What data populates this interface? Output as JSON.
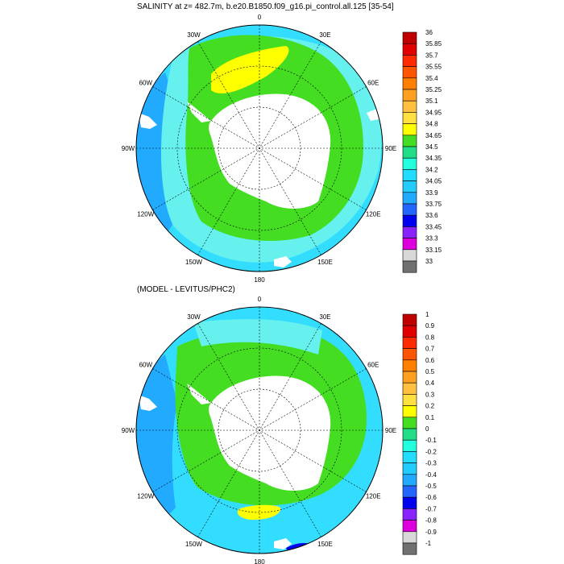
{
  "top_panel": {
    "title": "SALINITY at z= 482.7m, b.e20.B1850.f09_g16.pi_control.all.125 [35-54]",
    "colorbar": {
      "levels": [
        "36",
        "35.85",
        "35.7",
        "35.55",
        "35.4",
        "35.25",
        "35.1",
        "34.95",
        "34.8",
        "34.65",
        "34.5",
        "34.35",
        "34.2",
        "34.05",
        "33.9",
        "33.75",
        "33.6",
        "33.45",
        "33.3",
        "33.15",
        "33"
      ],
      "colors": [
        "#c00000",
        "#e00000",
        "#ff2a00",
        "#ff5500",
        "#ff8000",
        "#ffa020",
        "#ffc040",
        "#ffe040",
        "#ffff00",
        "#44dd22",
        "#22dd88",
        "#22ffdd",
        "#22ddff",
        "#22ccff",
        "#22aaff",
        "#2266ff",
        "#0000ee",
        "#8822ff",
        "#dd00dd",
        "#d8d8d8",
        "#707070"
      ]
    }
  },
  "bottom_panel": {
    "title": "(MODEL - LEVITUS/PHC2)",
    "colorbar": {
      "levels": [
        "1",
        "0.9",
        "0.8",
        "0.7",
        "0.6",
        "0.5",
        "0.4",
        "0.3",
        "0.2",
        "0.1",
        "0",
        "-0.1",
        "-0.2",
        "-0.3",
        "-0.4",
        "-0.5",
        "-0.6",
        "-0.7",
        "-0.8",
        "-0.9",
        "-1"
      ],
      "colors": [
        "#c00000",
        "#e00000",
        "#ff2a00",
        "#ff5500",
        "#ff8000",
        "#ffa020",
        "#ffc040",
        "#ffe040",
        "#ffff00",
        "#44dd22",
        "#22dd88",
        "#22ffdd",
        "#22ddff",
        "#22ccff",
        "#22aaff",
        "#2266ff",
        "#0000ee",
        "#8822ff",
        "#dd00dd",
        "#d8d8d8",
        "#707070"
      ]
    }
  },
  "longitude_labels": [
    "0",
    "30E",
    "60E",
    "90E",
    "120E",
    "150E",
    "180",
    "150W",
    "120W",
    "90W",
    "60W",
    "30W"
  ],
  "field_colors": {
    "ocean_base": "#33ddff",
    "deep_blue": "#22aaff",
    "cyan_light": "#66f0ee",
    "green": "#44dd22",
    "yellow": "#ffff00",
    "land": "#ffffff",
    "purple": "#0000ee"
  }
}
